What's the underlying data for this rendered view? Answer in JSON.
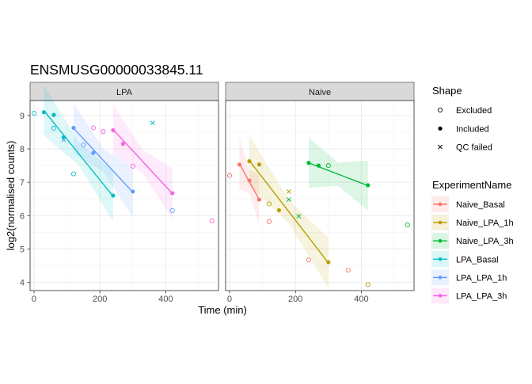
{
  "chart_data": {
    "type": "scatter",
    "title": "ENSMUSG00000033845.11",
    "xlabel": "Time (min)",
    "ylabel": "log2(normalised counts)",
    "xlim": [
      -12,
      560
    ],
    "ylim": [
      3.75,
      9.45
    ],
    "x_ticks": [
      0,
      200,
      400
    ],
    "y_ticks": [
      4,
      5,
      6,
      7,
      8,
      9
    ],
    "x_tick_labels": [
      "0",
      "200",
      "400"
    ],
    "y_tick_labels": [
      "4",
      "5",
      "6",
      "7",
      "8",
      "9"
    ],
    "grid": true,
    "panels": [
      "LPA",
      "Naive"
    ],
    "legend_shape": {
      "title": "Shape",
      "items": [
        {
          "label": "Excluded",
          "shape": "open-circle"
        },
        {
          "label": "Included",
          "shape": "filled-circle"
        },
        {
          "label": "QC failed",
          "shape": "cross"
        }
      ]
    },
    "legend_color": {
      "title": "ExperimentName",
      "items": [
        {
          "label": "Naive_Basal",
          "color": "#F8766D"
        },
        {
          "label": "Naive_LPA_1h",
          "color": "#B79F00"
        },
        {
          "label": "Naive_LPA_3h",
          "color": "#00BA38"
        },
        {
          "label": "LPA_Basal",
          "color": "#00BFC4"
        },
        {
          "label": "LPA_LPA_1h",
          "color": "#619CFF"
        },
        {
          "label": "LPA_LPA_3h",
          "color": "#F564E3"
        }
      ]
    },
    "series": [
      {
        "name": "LPA_Basal",
        "panel": "LPA",
        "color": "#00BFC4",
        "points": [
          {
            "x": 0,
            "y": 9.07,
            "shape": "open"
          },
          {
            "x": 30,
            "y": 9.1,
            "shape": "filled"
          },
          {
            "x": 60,
            "y": 9.02,
            "shape": "filled"
          },
          {
            "x": 60,
            "y": 8.62,
            "shape": "open"
          },
          {
            "x": 90,
            "y": 8.35,
            "shape": "filled"
          },
          {
            "x": 120,
            "y": 7.25,
            "shape": "open"
          },
          {
            "x": 240,
            "y": 6.6,
            "shape": "filled"
          }
        ],
        "fit": {
          "x": [
            30,
            240
          ],
          "y": [
            9.15,
            6.58
          ]
        }
      },
      {
        "name": "LPA_LPA_1h",
        "panel": "LPA",
        "color": "#619CFF",
        "points": [
          {
            "x": 90,
            "y": 8.27,
            "shape": "cross"
          },
          {
            "x": 120,
            "y": 8.63,
            "shape": "filled"
          },
          {
            "x": 150,
            "y": 8.12,
            "shape": "open"
          },
          {
            "x": 180,
            "y": 7.88,
            "shape": "filled"
          },
          {
            "x": 300,
            "y": 6.72,
            "shape": "filled"
          },
          {
            "x": 420,
            "y": 6.15,
            "shape": "open"
          }
        ],
        "fit": {
          "x": [
            120,
            300
          ],
          "y": [
            8.62,
            6.7
          ]
        }
      },
      {
        "name": "LPA_LPA_3h",
        "panel": "LPA",
        "color": "#F564E3",
        "points": [
          {
            "x": 180,
            "y": 8.63,
            "shape": "open"
          },
          {
            "x": 210,
            "y": 8.52,
            "shape": "open"
          },
          {
            "x": 240,
            "y": 8.56,
            "shape": "filled"
          },
          {
            "x": 270,
            "y": 8.15,
            "shape": "filled"
          },
          {
            "x": 300,
            "y": 7.48,
            "shape": "open"
          },
          {
            "x": 420,
            "y": 6.67,
            "shape": "filled"
          },
          {
            "x": 540,
            "y": 5.84,
            "shape": "open"
          }
        ],
        "fit": {
          "x": [
            240,
            420
          ],
          "y": [
            8.58,
            6.66
          ]
        }
      },
      {
        "name": "LPA_Basal",
        "panel": "LPA",
        "color": "#00BFC4",
        "points": [
          {
            "x": 360,
            "y": 8.78,
            "shape": "cross"
          }
        ]
      },
      {
        "name": "Naive_Basal",
        "panel": "Naive",
        "color": "#F8766D",
        "points": [
          {
            "x": 0,
            "y": 7.2,
            "shape": "open"
          },
          {
            "x": 30,
            "y": 7.53,
            "shape": "filled"
          },
          {
            "x": 60,
            "y": 7.05,
            "shape": "filled"
          },
          {
            "x": 90,
            "y": 6.48,
            "shape": "filled"
          },
          {
            "x": 120,
            "y": 5.82,
            "shape": "open"
          },
          {
            "x": 240,
            "y": 4.67,
            "shape": "open"
          },
          {
            "x": 360,
            "y": 4.36,
            "shape": "open"
          }
        ],
        "fit": {
          "x": [
            30,
            90
          ],
          "y": [
            7.55,
            6.48
          ]
        }
      },
      {
        "name": "Naive_LPA_1h",
        "panel": "Naive",
        "color": "#B79F00",
        "points": [
          {
            "x": 60,
            "y": 7.63,
            "shape": "filled"
          },
          {
            "x": 90,
            "y": 7.53,
            "shape": "filled"
          },
          {
            "x": 120,
            "y": 6.35,
            "shape": "open"
          },
          {
            "x": 150,
            "y": 6.16,
            "shape": "filled"
          },
          {
            "x": 180,
            "y": 6.72,
            "shape": "cross"
          },
          {
            "x": 300,
            "y": 4.6,
            "shape": "filled"
          },
          {
            "x": 420,
            "y": 3.93,
            "shape": "open"
          }
        ],
        "fit": {
          "x": [
            60,
            300
          ],
          "y": [
            7.65,
            4.58
          ]
        }
      },
      {
        "name": "Naive_LPA_3h",
        "panel": "Naive",
        "color": "#00BA38",
        "points": [
          {
            "x": 180,
            "y": 6.48,
            "shape": "cross"
          },
          {
            "x": 210,
            "y": 5.98,
            "shape": "cross"
          },
          {
            "x": 240,
            "y": 7.58,
            "shape": "filled"
          },
          {
            "x": 270,
            "y": 7.5,
            "shape": "filled"
          },
          {
            "x": 300,
            "y": 7.5,
            "shape": "open"
          },
          {
            "x": 420,
            "y": 6.91,
            "shape": "filled"
          },
          {
            "x": 540,
            "y": 5.72,
            "shape": "open"
          }
        ],
        "fit": {
          "x": [
            240,
            420
          ],
          "y": [
            7.58,
            6.9
          ]
        }
      }
    ]
  }
}
